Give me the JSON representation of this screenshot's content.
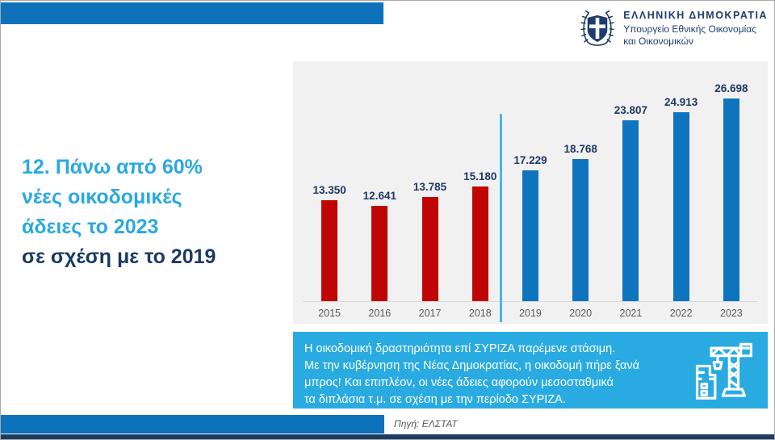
{
  "header": {
    "emblem_icon": "greek-coat-of-arms",
    "republic": "ΕΛΛΗΝΙΚΗ ΔΗΜΟΚΡΑΤΙΑ",
    "ministry_line1": "Υπουργείο Εθνικής Οικονομίας",
    "ministry_line2": "και Οικονομικών"
  },
  "title": {
    "line1": "12. Πάνω από 60%",
    "line2": "νέες οικοδομικές",
    "line3": "άδειες το 2023",
    "line4": "σε σχέση με το 2019"
  },
  "chart_data": {
    "type": "bar",
    "title": "",
    "xlabel": "",
    "ylabel": "",
    "categories": [
      "2015",
      "2016",
      "2017",
      "2018",
      "2019",
      "2020",
      "2021",
      "2022",
      "2023"
    ],
    "values": [
      13350,
      12641,
      13785,
      15180,
      17229,
      18768,
      23807,
      24913,
      26698
    ],
    "value_labels": [
      "13.350",
      "12.641",
      "13.785",
      "15.180",
      "17.229",
      "18.768",
      "23.807",
      "24.913",
      "26.698"
    ],
    "bar_colors": [
      "#c00505",
      "#c00505",
      "#c00505",
      "#c00505",
      "#0e74be",
      "#0e74be",
      "#0e74be",
      "#0e74be",
      "#0e74be"
    ],
    "separator_after_category": "2018",
    "ylim": [
      0,
      28000
    ],
    "grid": false,
    "legend": "none",
    "notes": "red bars = SYRIZA period 2015-2018, blue bars = New Democracy period 2019-2023, cyan vertical divider between 2018 and 2019"
  },
  "message": {
    "icon": "construction-crane-icon",
    "lines": [
      "Η οικοδομική δραστηριότητα επί ΣΥΡΙΖΑ παρέμενε στάσιμη.",
      "Με την κυβέρνηση της Νέας Δημοκρατίας, η οικοδομή πήρε ξανά",
      "μπρος! Και επιπλέον, οι νέες άδειες αφορούν μεσοσταθμικά",
      "τα διπλάσια τ.μ. σε σχέση με την περίοδο ΣΥΡΙΖΑ."
    ]
  },
  "footer": {
    "source": "Πηγή: ΕΛΣΤΑΤ"
  },
  "colors": {
    "accent_cyan": "#29a9e0",
    "box_cyan": "#29abe2",
    "separator_cyan": "#45b8e6",
    "navy_text": "#1f3864",
    "bar_red": "#c00505",
    "bar_blue": "#0e74be",
    "top_bar_blue": "#0d72b9",
    "panel_bg": "#f1f1f1",
    "bottom_strip_navy": "#1d3c5f",
    "year_label_gray": "#595959"
  }
}
